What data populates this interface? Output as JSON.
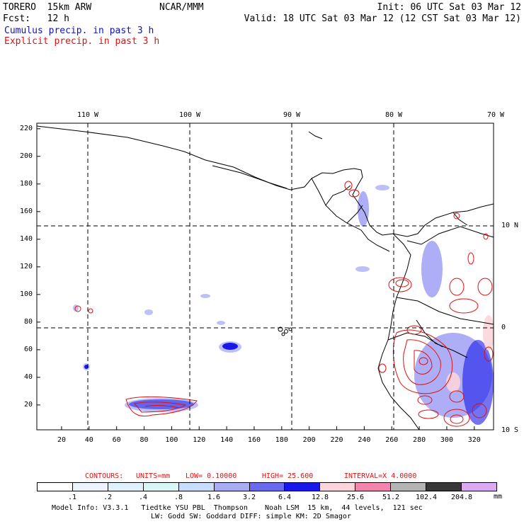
{
  "header": {
    "model": "TORERO  15km ARW",
    "org": "NCAR/MMM",
    "init": "Init: 06 UTC Sat 03 Mar 12",
    "fcst": "Fcst:   12 h",
    "valid": "Valid: 18 UTC Sat 03 Mar 12 (12 CST Sat 03 Mar 12)",
    "cumulus": "Cumulus precip. in past 3 h",
    "explicit": "Explicit precip. in past 3 h"
  },
  "map": {
    "lon_labels": [
      "110 W",
      "100 W",
      "90 W",
      "80 W",
      "70 W"
    ],
    "lat_labels": [
      "10 N",
      "0",
      "10 S"
    ],
    "y_ticks": [
      "220",
      "200",
      "180",
      "160",
      "140",
      "120",
      "100",
      "80",
      "60",
      "40",
      "20"
    ],
    "x_ticks": [
      "20",
      "40",
      "60",
      "80",
      "100",
      "120",
      "140",
      "160",
      "180",
      "200",
      "220",
      "240",
      "260",
      "280",
      "300",
      "320"
    ]
  },
  "contours": {
    "label": "CONTOURS:",
    "units": "UNITS=mm",
    "low": "LOW= 0.10000",
    "high": "HIGH=  25.600",
    "interval": "INTERVAL=X  4.0000"
  },
  "colorbar": {
    "labels": [
      ".1",
      ".2",
      ".4",
      ".8",
      "1.6",
      "3.2",
      "6.4",
      "12.8",
      "25.6",
      "51.2",
      "102.4",
      "204.8"
    ],
    "unit": "mm",
    "colors": [
      "#ffffff",
      "#eef4ff",
      "#dff0ff",
      "#d8f6f6",
      "#c8dcfb",
      "#a8acf2",
      "#6a6aee",
      "#1818e8",
      "#fcd4dc",
      "#f284b0",
      "#b4b4b4",
      "#383838",
      "#dcaaf2"
    ]
  },
  "footer": {
    "line1": "Model Info: V3.3.1   Tiedtke YSU PBL  Thompson    Noah LSM  15 km,  44 levels,  121 sec",
    "line2": "LW: Godd SW: Goddard DIFF: simple KM: 2D Smagor"
  }
}
